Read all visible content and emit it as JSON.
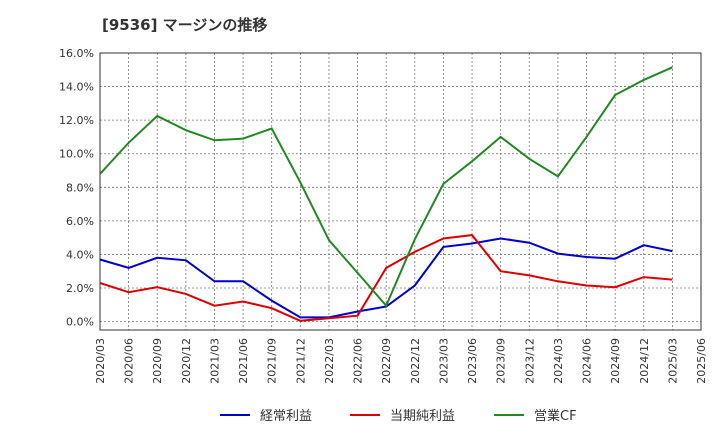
{
  "chart_data": {
    "type": "line",
    "title": "[9536]  マージンの推移",
    "xlabel": "",
    "ylabel": "",
    "ylim": [
      -0.5,
      16.0
    ],
    "yticks": [
      "0.0%",
      "2.0%",
      "4.0%",
      "6.0%",
      "8.0%",
      "10.0%",
      "12.0%",
      "14.0%",
      "16.0%"
    ],
    "ytick_values": [
      0,
      2,
      4,
      6,
      8,
      10,
      12,
      14,
      16
    ],
    "x": [
      "2020/03",
      "2020/06",
      "2020/09",
      "2020/12",
      "2021/03",
      "2021/06",
      "2021/09",
      "2021/12",
      "2022/03",
      "2022/06",
      "2022/09",
      "2022/12",
      "2023/03",
      "2023/06",
      "2023/09",
      "2023/12",
      "2024/03",
      "2024/06",
      "2024/09",
      "2024/12",
      "2025/03",
      "2025/06"
    ],
    "grid": true,
    "legend_position": "bottom",
    "series": [
      {
        "name": "経常利益",
        "color": "#0000cc",
        "values": [
          3.7,
          3.2,
          3.8,
          3.65,
          2.4,
          2.4,
          1.25,
          0.25,
          0.25,
          0.6,
          0.9,
          2.15,
          4.45,
          4.65,
          4.95,
          4.7,
          4.05,
          3.85,
          3.75,
          4.55,
          4.2,
          null
        ]
      },
      {
        "name": "当期純利益",
        "color": "#dd0000",
        "values": [
          2.3,
          1.75,
          2.05,
          1.65,
          0.95,
          1.2,
          0.8,
          0.05,
          0.2,
          0.35,
          3.2,
          4.15,
          4.95,
          5.15,
          3.0,
          2.75,
          2.4,
          2.15,
          2.05,
          2.65,
          2.5,
          null
        ]
      },
      {
        "name": "営業CF",
        "color": "#228822",
        "values": [
          8.8,
          10.65,
          12.25,
          11.4,
          10.8,
          10.9,
          11.5,
          8.3,
          4.85,
          2.9,
          0.95,
          4.9,
          8.2,
          9.55,
          11.0,
          9.7,
          8.65,
          11.0,
          13.5,
          14.4,
          15.15,
          null
        ]
      }
    ]
  }
}
